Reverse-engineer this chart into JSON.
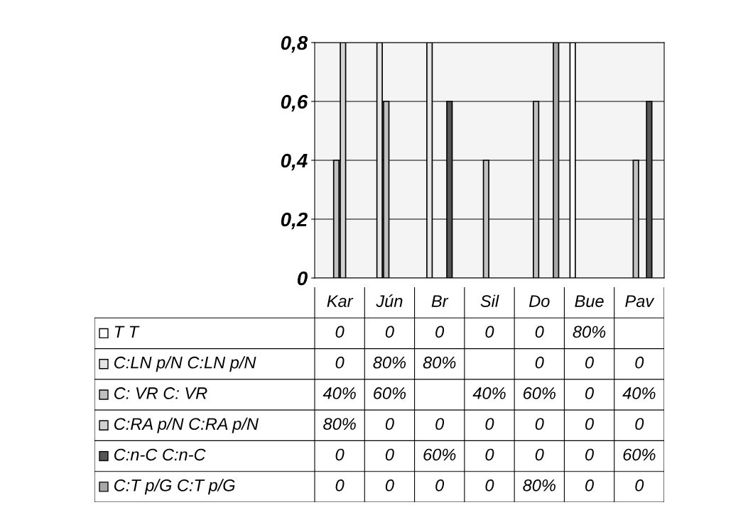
{
  "chart_data": {
    "type": "bar",
    "categories": [
      "Kar",
      "Jún",
      "Br",
      "Sil",
      "Do",
      "Bue",
      "Pav"
    ],
    "series": [
      {
        "name": "T T",
        "color": "#ffffff",
        "values": [
          0,
          0,
          0,
          0,
          0,
          0.8,
          null
        ],
        "value_labels": [
          "0",
          "0",
          "0",
          "0",
          "0",
          "80%",
          null
        ]
      },
      {
        "name": "C:LN p/N C:LN p/N",
        "color": "#e4e4e4",
        "values": [
          0,
          0.8,
          0.8,
          null,
          0,
          0,
          0
        ],
        "value_labels": [
          "0",
          "80%",
          "80%",
          null,
          "0",
          "0",
          "0"
        ]
      },
      {
        "name": "C: VR C: VR",
        "color": "#c0c0c0",
        "values": [
          0.4,
          0.6,
          null,
          0.4,
          0.6,
          0,
          0.4
        ],
        "value_labels": [
          "40%",
          "60%",
          null,
          "40%",
          "60%",
          "0",
          "40%"
        ]
      },
      {
        "name": "C:RA p/N C:RA p/N",
        "color": "#d2d2d2",
        "values": [
          0.8,
          0,
          0,
          0,
          0,
          0,
          0
        ],
        "value_labels": [
          "80%",
          "0",
          "0",
          "0",
          "0",
          "0",
          "0"
        ]
      },
      {
        "name": "C:n-C C:n-C",
        "color": "#555555",
        "values": [
          0,
          0,
          0.6,
          0,
          0,
          0,
          0.6
        ],
        "value_labels": [
          "0",
          "0",
          "60%",
          "0",
          "0",
          "0",
          "60%"
        ]
      },
      {
        "name": "C:T p/G C:T p/G",
        "color": "#a8a8a8",
        "values": [
          0,
          0,
          0,
          0,
          0.8,
          0,
          0
        ],
        "value_labels": [
          "0",
          "0",
          "0",
          "0",
          "80%",
          "0",
          "0"
        ]
      }
    ],
    "ylim": [
      0,
      0.8
    ],
    "yticks": [
      0,
      {
        "value": 0.2,
        "label": "0,2"
      },
      {
        "value": 0.4,
        "label": "0,4"
      },
      {
        "value": 0.6,
        "label": "0,6"
      },
      {
        "value": 0.8,
        "label": "0,8"
      }
    ],
    "grid": "y",
    "legend": "bottom left"
  }
}
